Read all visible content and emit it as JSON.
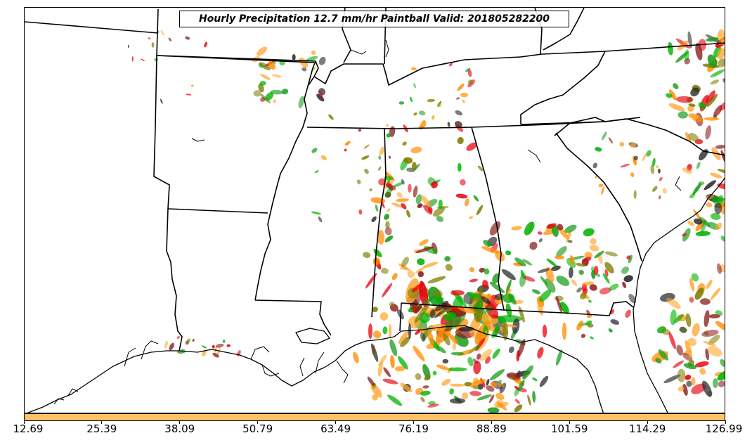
{
  "title": "Hourly Precipitation 12.7 mm/hr Paintball Valid: 201805282200",
  "colorbar": {
    "color": "#ffc266",
    "ticks": [
      "12.69",
      "25.39",
      "38.09",
      "50.79",
      "63.49",
      "76.19",
      "88.89",
      "101.59",
      "114.29",
      "126.99"
    ]
  },
  "map": {
    "region": "Southeastern United States",
    "features": [
      "state-boundaries",
      "coastline",
      "paintball-precipitation-contours"
    ]
  },
  "ensemble_colors": [
    "#e8000b",
    "#ff8c00",
    "#00b300",
    "#1a9c1a",
    "#8b1a1a",
    "#7d7d00",
    "#2b2b2b",
    "#ffa62b"
  ]
}
